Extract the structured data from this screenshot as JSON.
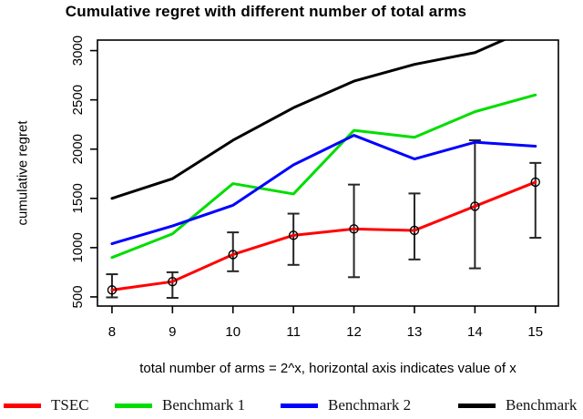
{
  "chart_data": {
    "type": "line",
    "title": "Cumulative regret with different number of total arms",
    "xlabel": "total number of arms = 2^x, horizontal axis indicates value of x",
    "ylabel": "cumulative regret",
    "x": [
      8,
      9,
      10,
      11,
      12,
      13,
      14,
      15
    ],
    "x_ticks": [
      8,
      9,
      10,
      11,
      12,
      13,
      14,
      15
    ],
    "y_ticks": [
      500,
      1000,
      1500,
      2000,
      2500,
      3000
    ],
    "xlim": [
      7.76,
      15.38
    ],
    "ylim": [
      407,
      3107
    ],
    "grid": false,
    "legend_position": "bottom",
    "error_bar_color": "#262626",
    "axis_color": "#000000",
    "series": [
      {
        "name": "TSEC",
        "color": "#ff0000",
        "marker": "open-circle",
        "values": [
          570,
          655,
          930,
          1125,
          1190,
          1175,
          1420,
          1665
        ],
        "error_low": [
          495,
          490,
          760,
          825,
          700,
          880,
          790,
          1100
        ],
        "error_high": [
          730,
          750,
          1155,
          1345,
          1640,
          1550,
          2090,
          1860
        ]
      },
      {
        "name": "Benchmark 1",
        "color": "#00dd00",
        "values": [
          900,
          1140,
          1650,
          1545,
          2190,
          2120,
          2380,
          2550
        ]
      },
      {
        "name": "Benchmark 2",
        "color": "#0000ff",
        "values": [
          1040,
          1220,
          1430,
          1840,
          2140,
          1900,
          2070,
          2030
        ]
      },
      {
        "name": "Benchmark",
        "color": "#000000",
        "values": [
          1500,
          1700,
          2090,
          2420,
          2690,
          2860,
          2980,
          3250
        ],
        "clipped_at_top": true
      }
    ]
  }
}
